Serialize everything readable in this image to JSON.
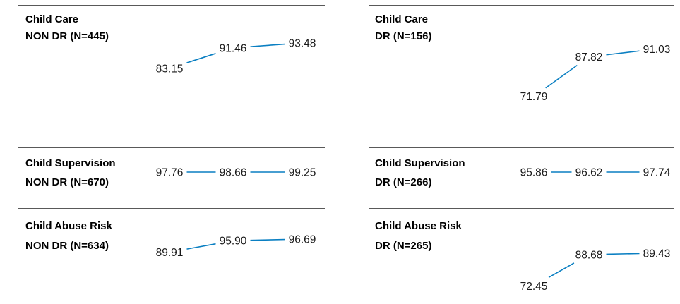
{
  "colors": {
    "line": "#0a7fc2",
    "rule": "#222222",
    "text": "#1a1a1a"
  },
  "chart_data": [
    {
      "type": "line",
      "title": "Child Care",
      "subtitle": "NON DR (N=445)",
      "values": [
        83.15,
        91.46,
        93.48
      ],
      "labels": [
        "83.15",
        "91.46",
        "93.48"
      ],
      "ylim": [
        70,
        100
      ]
    },
    {
      "type": "line",
      "title": "Child Supervision",
      "subtitle": "NON DR (N=670)",
      "values": [
        97.76,
        98.66,
        99.25
      ],
      "labels": [
        "97.76",
        "98.66",
        "99.25"
      ]
    },
    {
      "type": "line",
      "title": "Child Abuse Risk",
      "subtitle": "NON DR (N=634)",
      "values": [
        89.91,
        95.9,
        96.69
      ],
      "labels": [
        "89.91",
        "95.90",
        "96.69"
      ],
      "ylim": [
        70,
        100
      ]
    },
    {
      "type": "line",
      "title": "Child Care",
      "subtitle": "DR (N=156)",
      "values": [
        71.79,
        87.82,
        91.03
      ],
      "labels": [
        "71.79",
        "87.82",
        "91.03"
      ],
      "ylim": [
        70,
        100
      ]
    },
    {
      "type": "line",
      "title": "Child Supervision",
      "subtitle": "DR (N=266)",
      "values": [
        95.86,
        96.62,
        97.74
      ],
      "labels": [
        "95.86",
        "96.62",
        "97.74"
      ]
    },
    {
      "type": "line",
      "title": "Child Abuse Risk",
      "subtitle": "DR (N=265)",
      "values": [
        72.45,
        88.68,
        89.43
      ],
      "labels": [
        "72.45",
        "88.68",
        "89.43"
      ],
      "ylim": [
        70,
        100
      ]
    }
  ]
}
